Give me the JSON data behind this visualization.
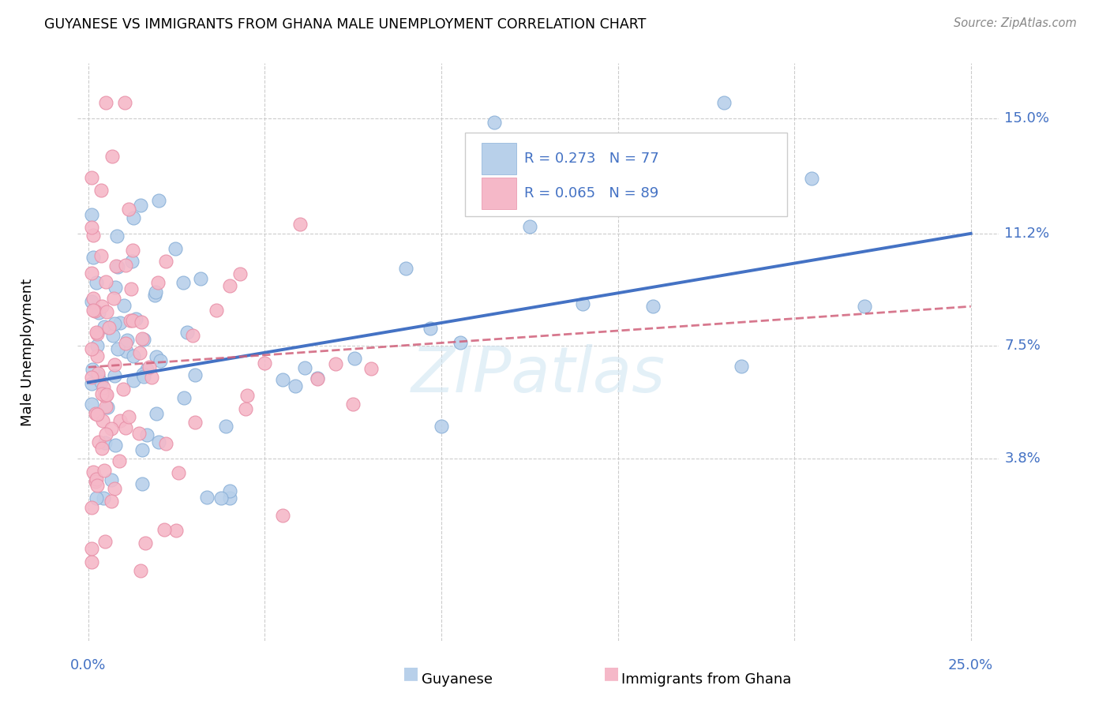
{
  "title": "GUYANESE VS IMMIGRANTS FROM GHANA MALE UNEMPLOYMENT CORRELATION CHART",
  "source": "Source: ZipAtlas.com",
  "ylabel": "Male Unemployment",
  "ytick_labels": [
    "15.0%",
    "11.2%",
    "7.5%",
    "3.8%"
  ],
  "ytick_values": [
    0.15,
    0.112,
    0.075,
    0.038
  ],
  "xtick_labels": [
    "0.0%",
    "25.0%"
  ],
  "xtick_values": [
    0.0,
    0.25
  ],
  "xlim": [
    -0.003,
    0.258
  ],
  "ylim": [
    -0.022,
    0.168
  ],
  "legend_blue_r": "0.273",
  "legend_blue_n": "77",
  "legend_pink_r": "0.065",
  "legend_pink_n": "89",
  "legend_label_blue": "Guyanese",
  "legend_label_pink": "Immigrants from Ghana",
  "blue_fill": "#b8d0ea",
  "pink_fill": "#f5b8c8",
  "blue_edge": "#8ab0d8",
  "pink_edge": "#e890a8",
  "line_blue_color": "#4472c4",
  "line_pink_color": "#d0607a",
  "watermark": "ZIPatlas",
  "grid_color": "#cccccc",
  "blue_line_x0": 0.0,
  "blue_line_y0": 0.063,
  "blue_line_x1": 0.25,
  "blue_line_y1": 0.112,
  "pink_line_x0": 0.0,
  "pink_line_y0": 0.068,
  "pink_line_x1": 0.25,
  "pink_line_y1": 0.088
}
